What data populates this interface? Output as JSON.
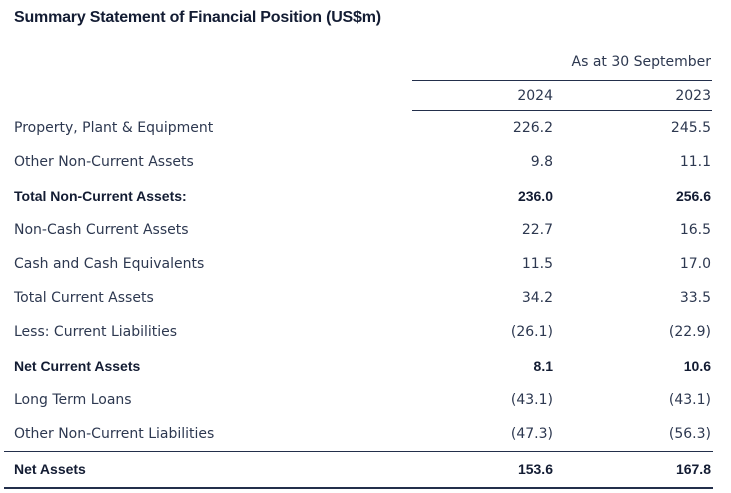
{
  "title": "Summary Statement of Financial Position (US$m)",
  "table": {
    "period_header": "As at 30 September",
    "columns": [
      "2024",
      "2023"
    ],
    "rows": [
      {
        "label": "Property, Plant & Equipment",
        "values": [
          "226.2",
          "245.5"
        ]
      },
      {
        "label": "Other Non-Current Assets",
        "values": [
          "9.8",
          "11.1"
        ]
      },
      {
        "label": "Total Non-Current Assets:",
        "values": [
          "236.0",
          "256.6"
        ]
      },
      {
        "label": "Non-Cash Current Assets",
        "values": [
          "22.7",
          "16.5"
        ]
      },
      {
        "label": "Cash and Cash Equivalents",
        "values": [
          "11.5",
          "17.0"
        ]
      },
      {
        "label": "Total Current Assets",
        "values": [
          "34.2",
          "33.5"
        ]
      },
      {
        "label": "Less: Current Liabilities",
        "values": [
          "(26.1)",
          "(22.9)"
        ]
      },
      {
        "label": "Net Current Assets",
        "values": [
          "8.1",
          "10.6"
        ]
      },
      {
        "label": "Long Term Loans",
        "values": [
          "(43.1)",
          "(43.1)"
        ]
      },
      {
        "label": "Other Non-Current Liabilities",
        "values": [
          "(47.3)",
          "(56.3)"
        ]
      }
    ],
    "total_row": {
      "label": "Net Assets",
      "values": [
        "153.6",
        "167.8"
      ]
    }
  },
  "colors": {
    "title_text": "#131c33",
    "body_text": "#2d3850",
    "rule_line": "#232f4b",
    "background": "#ffffff"
  }
}
